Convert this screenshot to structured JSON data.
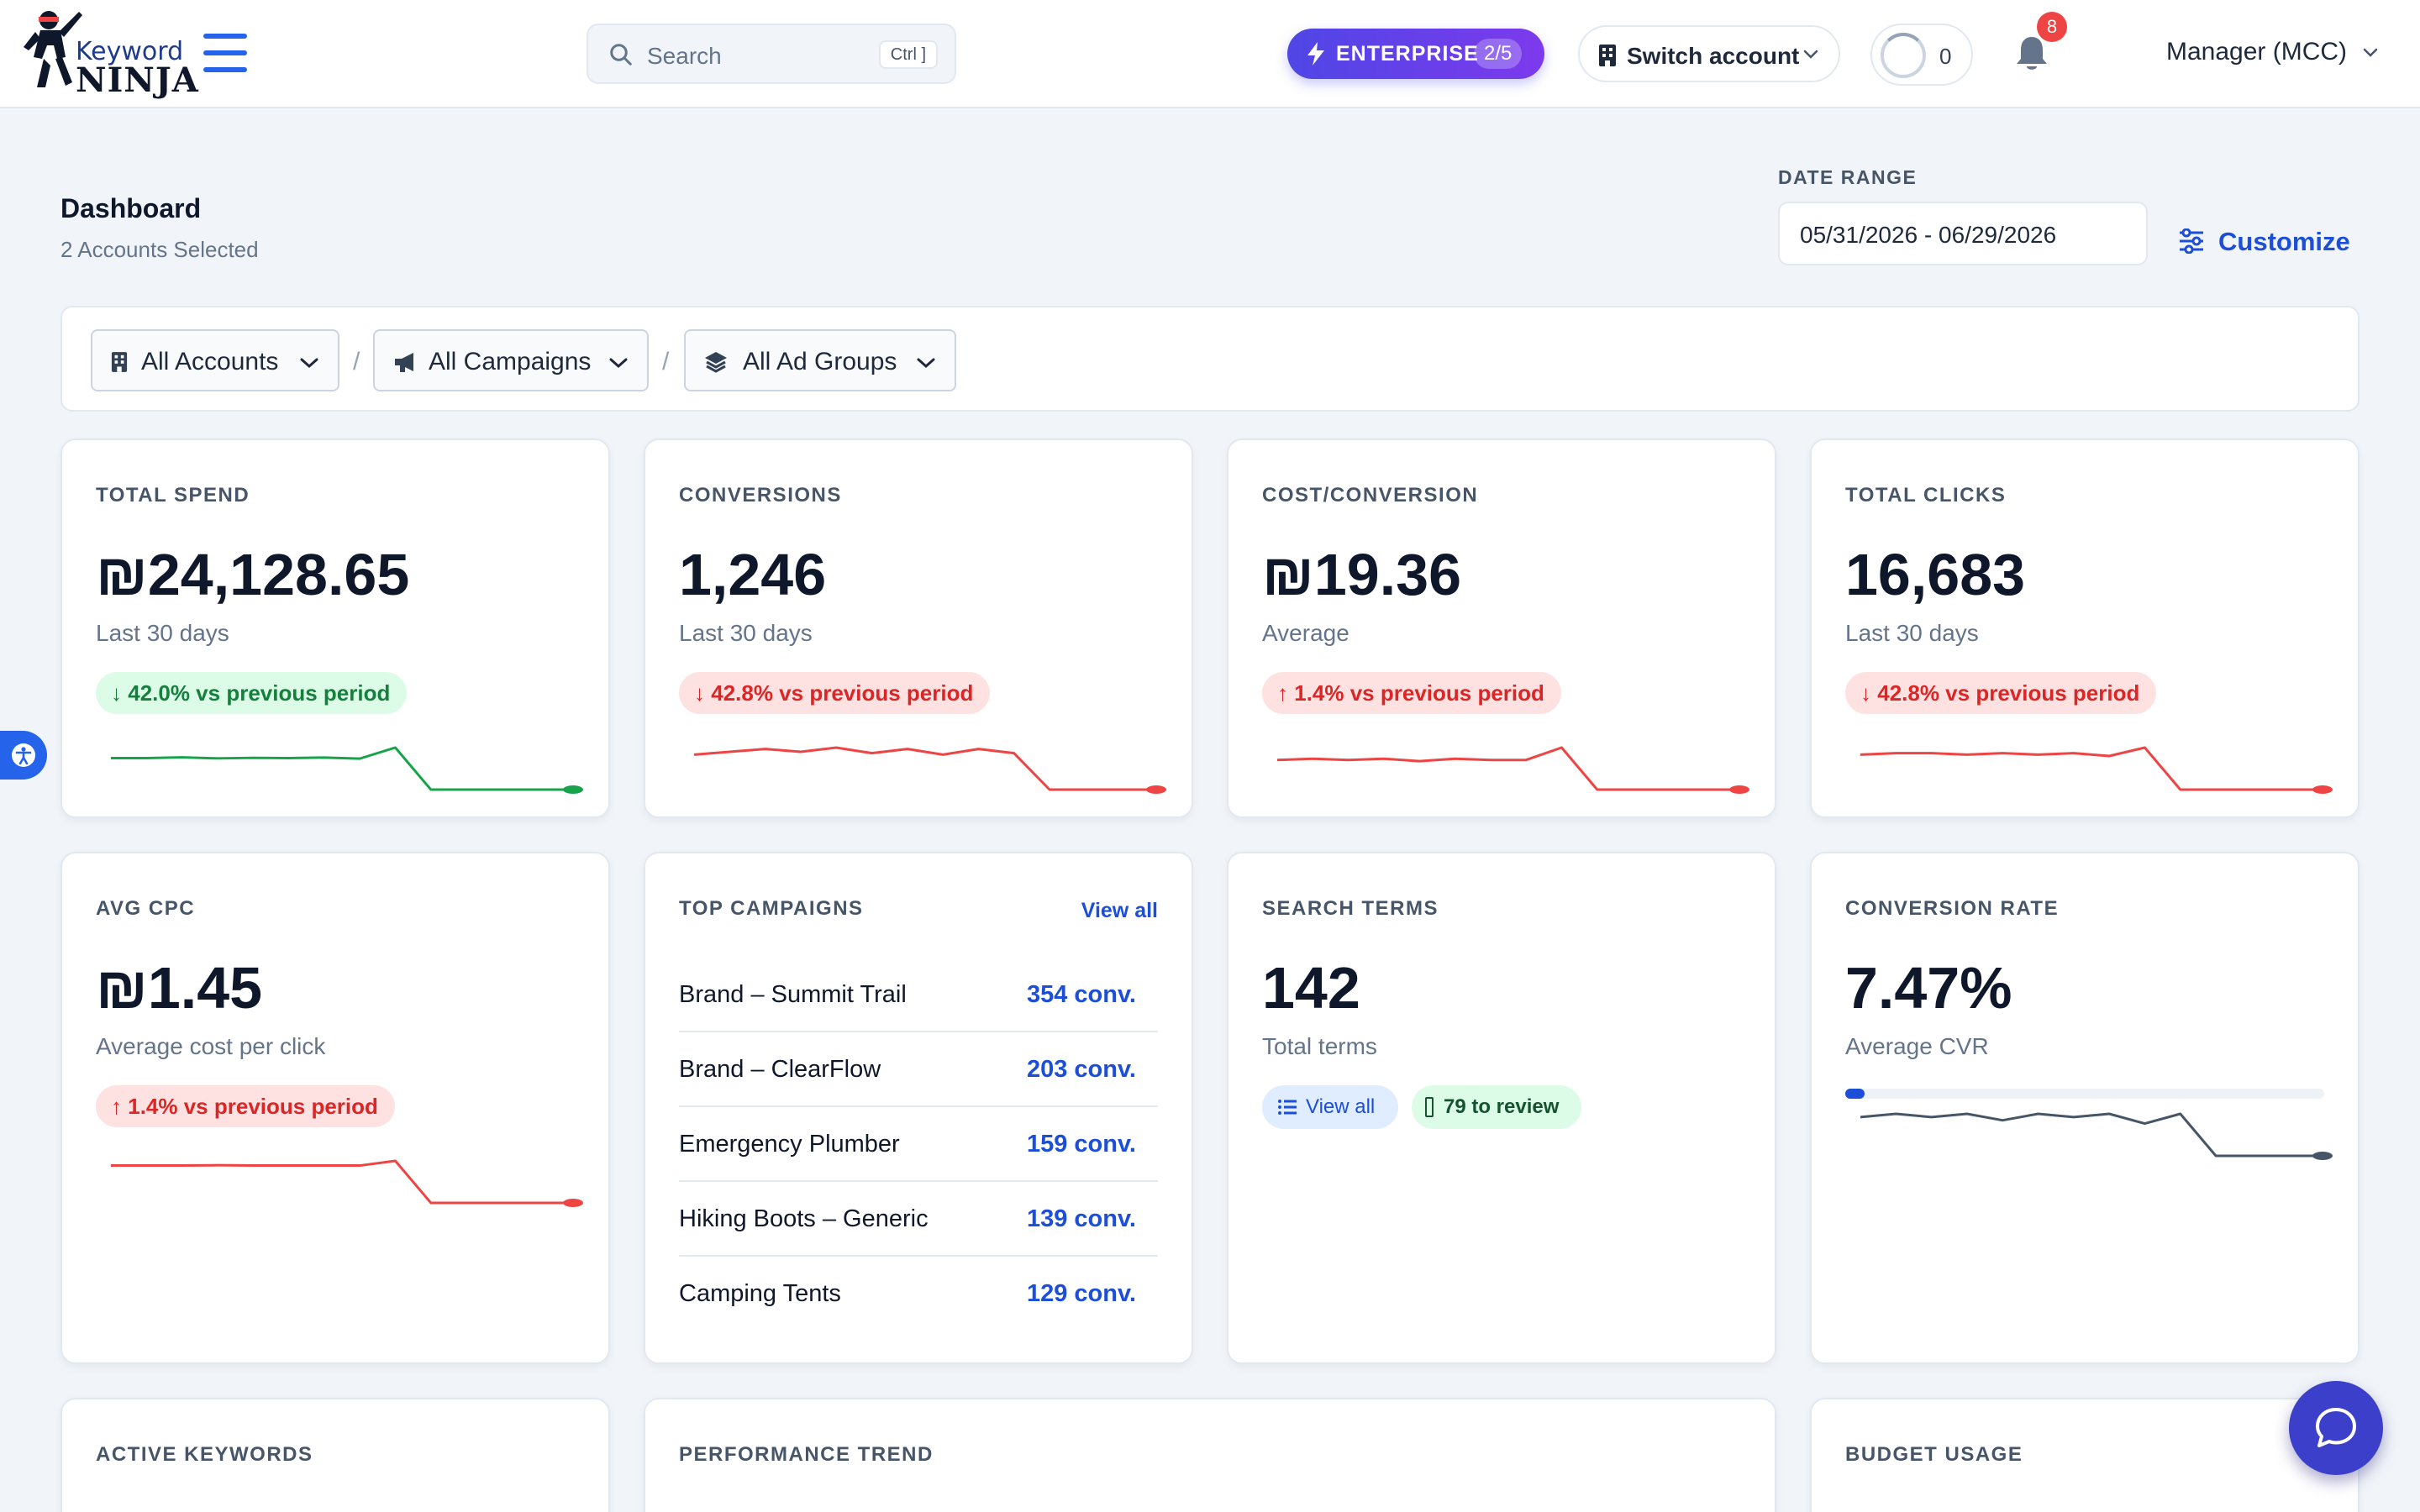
{
  "topbar": {
    "logo_word1": "Keyword",
    "logo_word2": "NINJA",
    "search_placeholder": "Search",
    "search_shortcut": "Ctrl ]",
    "plan_label": "ENTERPRISE",
    "plan_usage": "2/5",
    "switch_account_label": "Switch account",
    "credits_count": "0",
    "notification_count": "8",
    "account_menu_label": "Manager (MCC)"
  },
  "header": {
    "title": "Dashboard",
    "subtitle": "2 Accounts Selected",
    "date_range_label": "DATE RANGE",
    "date_range_value": "05/31/2026 - 06/29/2026",
    "customize_label": "Customize"
  },
  "filters": {
    "accounts": "All Accounts",
    "campaigns": "All Campaigns",
    "ad_groups": "All Ad Groups",
    "separator": "/"
  },
  "colors": {
    "accent": "#1d4ed8",
    "positive": "#15803d",
    "negative": "#ef4444",
    "neutral_line": "#475569"
  },
  "cards": {
    "total_spend": {
      "label": "TOTAL SPEND",
      "value": "₪24,128.65",
      "sub": "Last 30 days",
      "delta": "42.0% vs previous period",
      "delta_direction": "down",
      "delta_tone": "good",
      "spark_color": "#16a34a",
      "spark": [
        4,
        4,
        4.6,
        3.8,
        4.2,
        4,
        4.4,
        3.6,
        12,
        -20,
        -20,
        -20,
        -20,
        -20
      ]
    },
    "conversions": {
      "label": "CONVERSIONS",
      "value": "1,246",
      "sub": "Last 30 days",
      "delta": "42.8% vs previous period",
      "delta_direction": "down",
      "delta_tone": "bad",
      "spark_color": "#ef4444",
      "spark": [
        5,
        7,
        9,
        7,
        10,
        6,
        9,
        5,
        9,
        6,
        -20,
        -20,
        -20,
        -20
      ]
    },
    "cost_per_conversion": {
      "label": "COST/CONVERSION",
      "value": "₪19.36",
      "sub": "Average",
      "delta": "1.4% vs previous period",
      "delta_direction": "up",
      "delta_tone": "bad",
      "spark_color": "#ef4444",
      "spark": [
        4,
        5,
        4,
        5,
        3,
        5,
        4,
        4,
        14,
        -20,
        -20,
        -20,
        -20,
        -20
      ]
    },
    "total_clicks": {
      "label": "TOTAL CLICKS",
      "value": "16,683",
      "sub": "Last 30 days",
      "delta": "42.8% vs previous period",
      "delta_direction": "down",
      "delta_tone": "bad",
      "spark_color": "#ef4444",
      "spark": [
        5,
        6,
        6,
        5,
        6,
        5,
        6,
        4,
        10,
        -20,
        -20,
        -20,
        -20,
        -20
      ]
    },
    "avg_cpc": {
      "label": "AVG CPC",
      "value": "₪1.45",
      "sub": "Average cost per click",
      "delta": "1.4% vs previous period",
      "delta_direction": "up",
      "delta_tone": "bad",
      "spark_color": "#ef4444",
      "spark": [
        4,
        4,
        4,
        4.2,
        4,
        4,
        4,
        4,
        7,
        -20,
        -20,
        -20,
        -20,
        -20
      ]
    },
    "top_campaigns": {
      "label": "TOP CAMPAIGNS",
      "view_all": "View all",
      "rows": [
        {
          "name": "Brand – Summit Trail",
          "conv": "354 conv."
        },
        {
          "name": "Brand – ClearFlow",
          "conv": "203 conv."
        },
        {
          "name": "Emergency Plumber",
          "conv": "159 conv."
        },
        {
          "name": "Hiking Boots – Generic",
          "conv": "139 conv."
        },
        {
          "name": "Camping Tents",
          "conv": "129 conv."
        }
      ]
    },
    "search_terms": {
      "label": "SEARCH TERMS",
      "value": "142",
      "sub": "Total terms",
      "view_all": "View all",
      "review": "79 to review"
    },
    "conversion_rate": {
      "label": "CONVERSION RATE",
      "value": "7.47%",
      "sub": "Average CVR",
      "progress_fraction": 0.04,
      "spark_color": "#475569",
      "spark": [
        4,
        6,
        4,
        6,
        2,
        6,
        4,
        6,
        0,
        6,
        -20,
        -20,
        -20,
        -20
      ]
    },
    "active_keywords": {
      "label": "ACTIVE KEYWORDS"
    },
    "performance_trend": {
      "label": "PERFORMANCE TREND"
    },
    "budget_usage": {
      "label": "BUDGET USAGE"
    }
  }
}
